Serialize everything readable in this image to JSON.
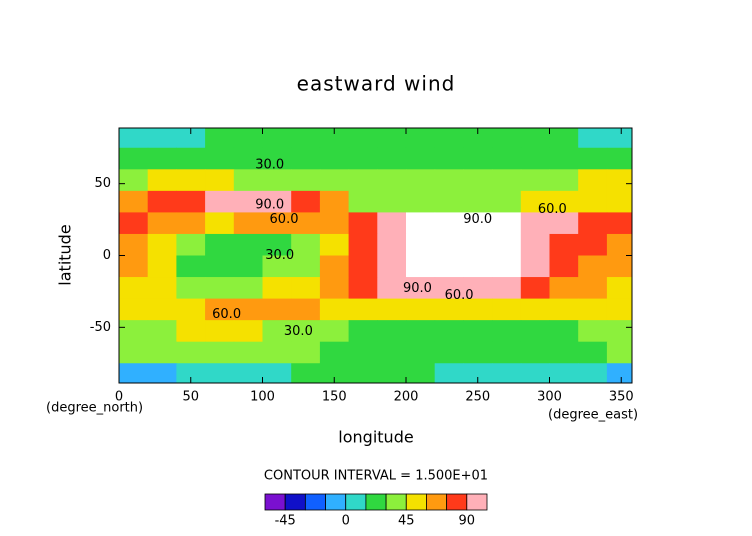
{
  "chart_data": {
    "type": "contour",
    "title": "eastward wind",
    "x_label": "longitude",
    "y_label": "latitude",
    "x_units": "(degree_east)",
    "y_units": "(degree_north)",
    "xlim": [
      0,
      357.5
    ],
    "ylim": [
      -88.75,
      88.75
    ],
    "xticks": [
      0,
      50,
      100,
      150,
      200,
      250,
      300,
      350
    ],
    "yticks": [
      -50,
      0,
      50
    ],
    "x": [
      10,
      30,
      50,
      70,
      90,
      110,
      130,
      150,
      170,
      190,
      210,
      230,
      250,
      270,
      290,
      310,
      330,
      350
    ],
    "y": [
      82.5,
      67.5,
      52.5,
      37.5,
      22.5,
      7.5,
      -7.5,
      -22.5,
      -37.5,
      -52.5,
      -67.5,
      -82.5
    ],
    "z": [
      [
        5,
        8,
        12,
        15,
        18,
        20,
        20,
        20,
        20,
        20,
        20,
        20,
        20,
        20,
        18,
        15,
        10,
        8
      ],
      [
        22,
        24,
        26,
        28,
        28,
        28,
        26,
        25,
        25,
        25,
        25,
        25,
        25,
        25,
        26,
        28,
        26,
        24
      ],
      [
        40,
        45,
        48,
        45,
        38,
        36,
        35,
        34,
        32,
        30,
        30,
        30,
        30,
        32,
        35,
        40,
        45,
        45
      ],
      [
        62,
        75,
        88,
        100,
        100,
        95,
        80,
        60,
        40,
        32,
        30,
        32,
        35,
        40,
        50,
        55,
        55,
        58
      ],
      [
        78,
        70,
        60,
        58,
        60,
        62,
        60,
        65,
        80,
        95,
        108,
        110,
        110,
        108,
        100,
        92,
        85,
        80
      ],
      [
        62,
        48,
        30,
        25,
        22,
        28,
        38,
        55,
        78,
        100,
        112,
        115,
        112,
        110,
        98,
        85,
        78,
        72
      ],
      [
        60,
        45,
        28,
        22,
        22,
        30,
        40,
        60,
        80,
        100,
        112,
        115,
        115,
        108,
        95,
        82,
        72,
        65
      ],
      [
        55,
        45,
        40,
        38,
        40,
        45,
        52,
        65,
        80,
        92,
        100,
        100,
        98,
        92,
        82,
        70,
        65,
        58
      ],
      [
        45,
        48,
        55,
        65,
        68,
        66,
        60,
        55,
        50,
        48,
        45,
        45,
        45,
        45,
        45,
        45,
        45,
        45
      ],
      [
        35,
        38,
        45,
        50,
        48,
        42,
        35,
        30,
        26,
        25,
        25,
        25,
        25,
        25,
        25,
        28,
        40,
        40
      ],
      [
        30,
        32,
        33,
        33,
        33,
        32,
        30,
        28,
        25,
        22,
        22,
        22,
        22,
        22,
        22,
        22,
        26,
        30
      ],
      [
        -10,
        -5,
        5,
        10,
        12,
        14,
        16,
        18,
        18,
        16,
        15,
        14,
        12,
        12,
        10,
        8,
        0,
        -5
      ]
    ],
    "contour_labels": [
      {
        "value": 30,
        "label": "30.0",
        "x": 105,
        "y": 63
      },
      {
        "value": 90,
        "label": "90.0",
        "x": 105,
        "y": 35
      },
      {
        "value": 60,
        "label": "60.0",
        "x": 115,
        "y": 25
      },
      {
        "value": 30,
        "label": "30.0",
        "x": 112,
        "y": 0
      },
      {
        "value": 90,
        "label": "90.0",
        "x": 250,
        "y": 25
      },
      {
        "value": 60,
        "label": "60.0",
        "x": 302,
        "y": 32
      },
      {
        "value": 90,
        "label": "90.0",
        "x": 208,
        "y": -23
      },
      {
        "value": 60,
        "label": "60.0",
        "x": 237,
        "y": -28
      },
      {
        "value": 60,
        "label": "60.0",
        "x": 75,
        "y": -41
      },
      {
        "value": 30,
        "label": "30.0",
        "x": 125,
        "y": -53
      }
    ],
    "contour_interval": "CONTOUR INTERVAL = 1.500E+01",
    "colorbar": {
      "levels": [
        -60,
        -45,
        -30,
        -15,
        0,
        15,
        30,
        45,
        60,
        75,
        90,
        105
      ],
      "colors": [
        "#7a10d0",
        "#1010c8",
        "#1060ff",
        "#30b0ff",
        "#30d8c8",
        "#30d840",
        "#8cf03c",
        "#f5e100",
        "#ff9a10",
        "#ff3a1a",
        "#ffb0b8"
      ],
      "over_color": "#ffffff",
      "under_color": "#7a10d0",
      "ticks": [
        -45,
        0,
        45,
        90
      ]
    }
  }
}
